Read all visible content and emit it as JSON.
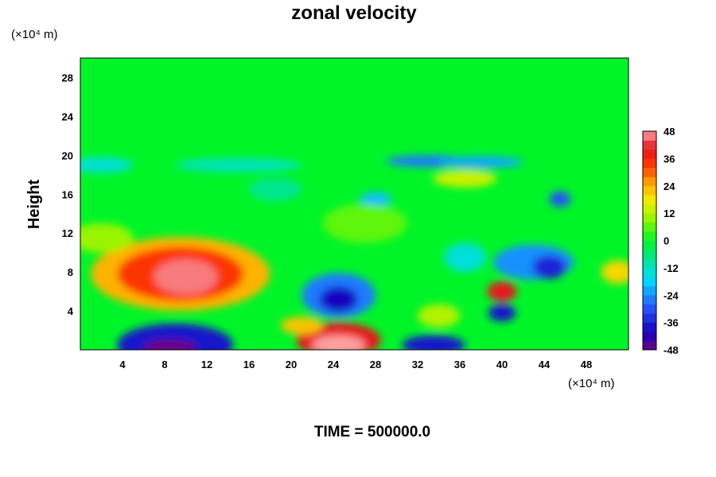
{
  "chart_data": {
    "type": "heatmap",
    "title": "zonal velocity",
    "ylabel": "Height",
    "xlabel": "",
    "x_unit": "(×10⁴ m)",
    "y_unit": "(×10⁴ m)",
    "time_label": "TIME = 500000.0",
    "xlim": [
      0,
      52
    ],
    "ylim": [
      0,
      30
    ],
    "x_ticks": [
      4,
      8,
      12,
      16,
      20,
      24,
      28,
      32,
      36,
      40,
      44,
      48
    ],
    "y_ticks": [
      4,
      8,
      12,
      16,
      20,
      24,
      28
    ],
    "colorbar": {
      "min": -48,
      "max": 48,
      "step": 4,
      "labels": [
        48,
        36,
        24,
        12,
        0,
        -12,
        -24,
        -36,
        -48
      ]
    },
    "background_value": 0,
    "features": [
      {
        "x": 9.5,
        "y": 7.8,
        "rx": 8.5,
        "ry": 3.8,
        "value": 24
      },
      {
        "x": 9.5,
        "y": 7.8,
        "rx": 6.0,
        "ry": 2.8,
        "value": 34
      },
      {
        "x": 10.0,
        "y": 7.5,
        "rx": 3.0,
        "ry": 1.8,
        "value": 46
      },
      {
        "x": 24.5,
        "y": 1.0,
        "rx": 4.0,
        "ry": 1.8,
        "value": 40
      },
      {
        "x": 24.5,
        "y": 0.5,
        "rx": 2.5,
        "ry": 1.0,
        "value": 48
      },
      {
        "x": 9.0,
        "y": 0.5,
        "rx": 5.5,
        "ry": 2.2,
        "value": -38
      },
      {
        "x": 8.5,
        "y": 0.2,
        "rx": 2.5,
        "ry": 0.8,
        "value": -48
      },
      {
        "x": 24.5,
        "y": 5.6,
        "rx": 3.5,
        "ry": 2.3,
        "value": -26
      },
      {
        "x": 24.5,
        "y": 5.2,
        "rx": 1.8,
        "ry": 1.3,
        "value": -40
      },
      {
        "x": 33.5,
        "y": 0.5,
        "rx": 3.0,
        "ry": 1.0,
        "value": -38
      },
      {
        "x": 40.0,
        "y": 6.0,
        "rx": 1.4,
        "ry": 1.0,
        "value": 40
      },
      {
        "x": 40.0,
        "y": 3.8,
        "rx": 1.3,
        "ry": 0.9,
        "value": -38
      },
      {
        "x": 43.0,
        "y": 9.0,
        "rx": 3.8,
        "ry": 1.8,
        "value": -24
      },
      {
        "x": 44.5,
        "y": 8.5,
        "rx": 1.6,
        "ry": 1.2,
        "value": -36
      },
      {
        "x": 33.0,
        "y": 19.4,
        "rx": 4.0,
        "ry": 0.6,
        "value": -26
      },
      {
        "x": 38.0,
        "y": 19.3,
        "rx": 4.0,
        "ry": 0.6,
        "value": -22
      },
      {
        "x": 2.0,
        "y": 19.0,
        "rx": 3.0,
        "ry": 0.8,
        "value": -14
      },
      {
        "x": 15.0,
        "y": 19.0,
        "rx": 6.0,
        "ry": 0.7,
        "value": -12
      },
      {
        "x": 45.5,
        "y": 15.5,
        "rx": 1.0,
        "ry": 0.8,
        "value": -30
      },
      {
        "x": 28.0,
        "y": 15.5,
        "rx": 1.5,
        "ry": 0.7,
        "value": -20
      },
      {
        "x": 36.5,
        "y": 17.6,
        "rx": 3.0,
        "ry": 0.9,
        "value": 14
      },
      {
        "x": 51.0,
        "y": 8.0,
        "rx": 1.6,
        "ry": 1.2,
        "value": 20
      },
      {
        "x": 2.0,
        "y": 11.5,
        "rx": 3.0,
        "ry": 1.5,
        "value": 10
      },
      {
        "x": 34.0,
        "y": 3.5,
        "rx": 2.0,
        "ry": 1.2,
        "value": 12
      },
      {
        "x": 21.0,
        "y": 2.5,
        "rx": 2.0,
        "ry": 0.9,
        "value": 22
      },
      {
        "x": 27.0,
        "y": 13.0,
        "rx": 4.0,
        "ry": 2.0,
        "value": 6
      },
      {
        "x": 36.5,
        "y": 9.5,
        "rx": 2.0,
        "ry": 1.5,
        "value": -14
      },
      {
        "x": 18.5,
        "y": 16.5,
        "rx": 2.5,
        "ry": 1.2,
        "value": -8
      }
    ]
  }
}
